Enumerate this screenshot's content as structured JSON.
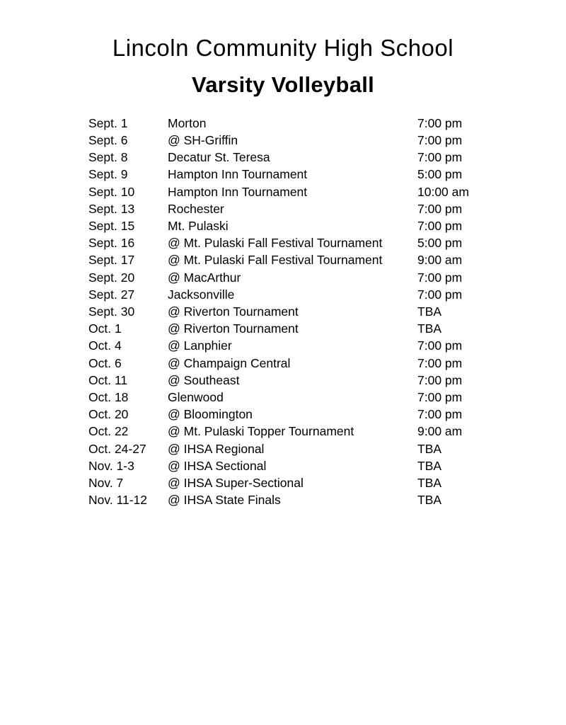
{
  "colors": {
    "text": "#000000",
    "background": "#ffffff"
  },
  "doc": {
    "title": "Lincoln Community High School",
    "subtitle": "Varsity Volleyball"
  },
  "schedule": {
    "columns": [
      "date",
      "opponent",
      "time"
    ],
    "rows": [
      {
        "date": "Sept. 1",
        "opponent": "Morton",
        "time": "7:00 pm"
      },
      {
        "date": "Sept. 6",
        "opponent": "@ SH-Griffin",
        "time": "7:00 pm"
      },
      {
        "date": "Sept. 8",
        "opponent": "Decatur St. Teresa",
        "time": "7:00 pm"
      },
      {
        "date": "Sept. 9",
        "opponent": "Hampton Inn Tournament",
        "time": "5:00 pm"
      },
      {
        "date": "Sept. 10",
        "opponent": "Hampton Inn Tournament",
        "time": "10:00 am"
      },
      {
        "date": "Sept. 13",
        "opponent": "Rochester",
        "time": "7:00 pm"
      },
      {
        "date": "Sept. 15",
        "opponent": "Mt. Pulaski",
        "time": "7:00 pm"
      },
      {
        "date": "Sept. 16",
        "opponent": "@ Mt. Pulaski Fall Festival Tournament",
        "time": "5:00 pm"
      },
      {
        "date": "Sept. 17",
        "opponent": "@ Mt. Pulaski Fall Festival Tournament",
        "time": "9:00 am"
      },
      {
        "date": "Sept. 20",
        "opponent": "@ MacArthur",
        "time": "7:00 pm"
      },
      {
        "date": "Sept. 27",
        "opponent": "Jacksonville",
        "time": "7:00 pm"
      },
      {
        "date": "Sept. 30",
        "opponent": "@ Riverton Tournament",
        "time": "TBA"
      },
      {
        "date": "Oct. 1",
        "opponent": "@ Riverton Tournament",
        "time": "TBA"
      },
      {
        "date": "Oct. 4",
        "opponent": "@ Lanphier",
        "time": "7:00 pm"
      },
      {
        "date": "Oct. 6",
        "opponent": "@ Champaign Central",
        "time": "7:00 pm"
      },
      {
        "date": "Oct. 11",
        "opponent": "@ Southeast",
        "time": "7:00 pm"
      },
      {
        "date": "Oct. 18",
        "opponent": "Glenwood",
        "time": "7:00 pm"
      },
      {
        "date": "Oct. 20",
        "opponent": "@ Bloomington",
        "time": "7:00 pm"
      },
      {
        "date": "Oct. 22",
        "opponent": "@ Mt. Pulaski Topper Tournament",
        "time": "9:00 am"
      },
      {
        "date": "Oct. 24-27",
        "opponent": "@ IHSA Regional",
        "time": "TBA"
      },
      {
        "date": "Nov. 1-3",
        "opponent": "@ IHSA Sectional",
        "time": "TBA"
      },
      {
        "date": "Nov. 7",
        "opponent": "@ IHSA Super-Sectional",
        "time": "TBA"
      },
      {
        "date": "Nov. 11-12",
        "opponent": "@ IHSA State Finals",
        "time": "TBA"
      }
    ]
  }
}
